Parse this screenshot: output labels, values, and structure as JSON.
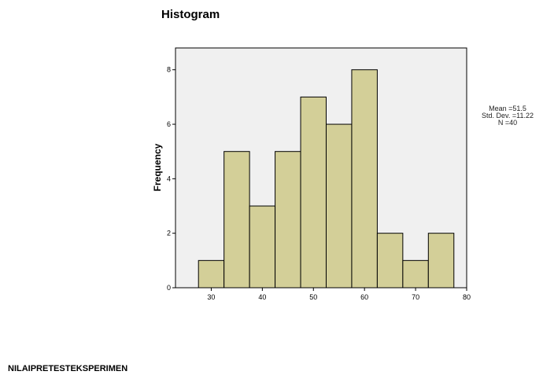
{
  "chart_data": {
    "type": "bar",
    "title": "Histogram",
    "xlabel": "NILAIPRETESTEKSPERIMEN",
    "ylabel": "Frequency",
    "bin_edges": [
      27.5,
      32.5,
      37.5,
      42.5,
      47.5,
      52.5,
      57.5,
      62.5,
      67.5,
      72.5,
      77.5
    ],
    "values": [
      1,
      5,
      3,
      5,
      7,
      6,
      8,
      2,
      1,
      2
    ],
    "xlim": [
      23,
      80
    ],
    "ylim": [
      0,
      8.8
    ],
    "x_ticks": [
      30,
      40,
      50,
      60,
      70,
      80
    ],
    "y_ticks": [
      0,
      2,
      4,
      6,
      8
    ],
    "grid": false,
    "bar_fill": "#d3cf98",
    "plot_background": "#f0f0f0",
    "stats": {
      "mean": "Mean =51.5",
      "std": "Std. Dev. =11.22",
      "n": "N =40"
    }
  }
}
